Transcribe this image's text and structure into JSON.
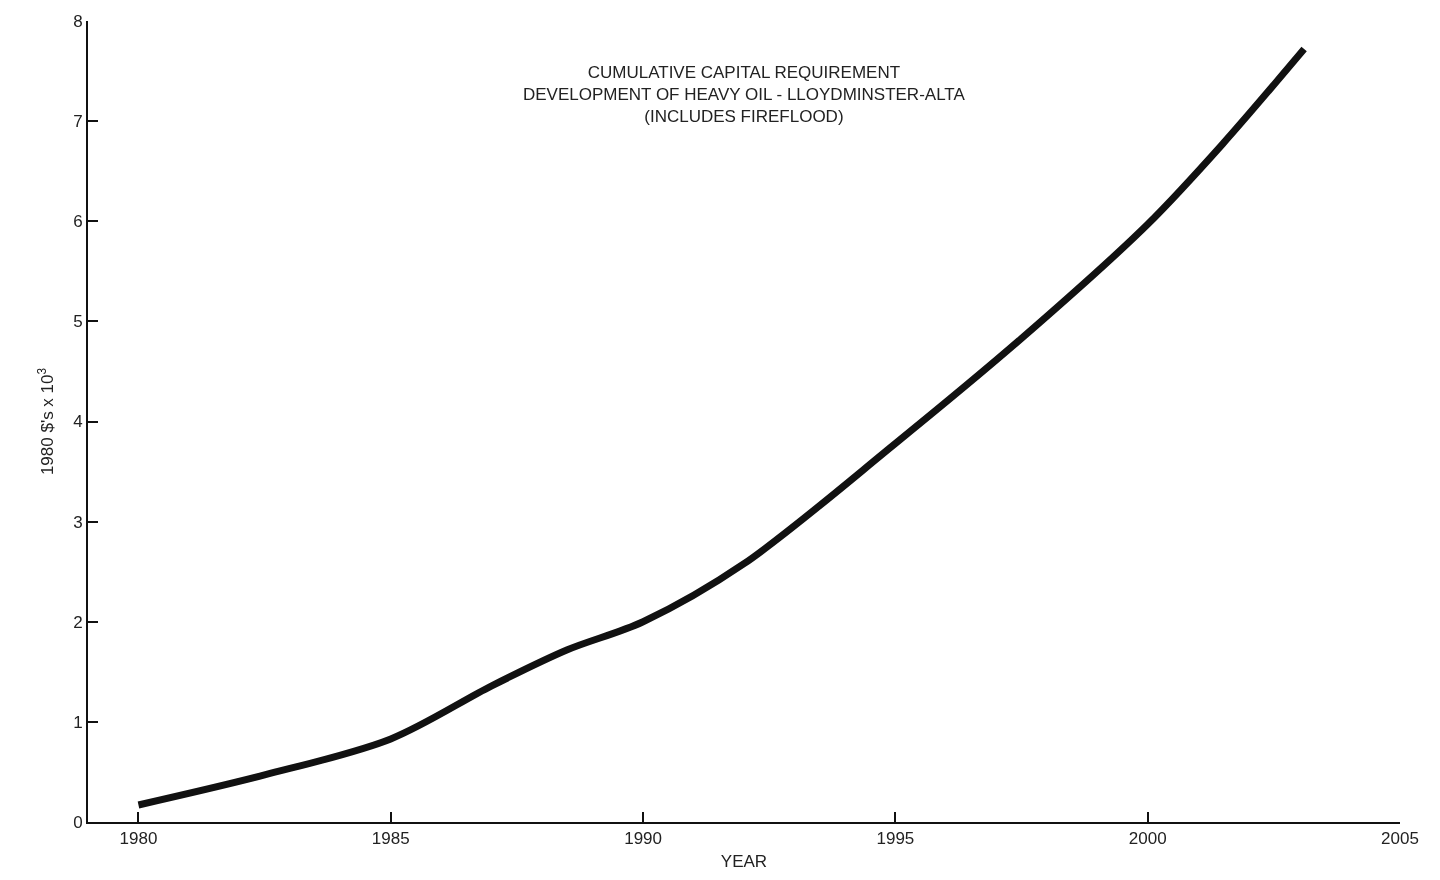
{
  "chart_data": {
    "type": "line",
    "title": "CUMULATIVE CAPITAL REQUIREMENT\nDEVELOPMENT OF HEAVY OIL - LLOYDMINSTER-ALTA\n(INCLUDES FIREFLOOD)",
    "xlabel": "YEAR",
    "ylabel": "1980 $'s x 10$^{3}$",
    "x": [
      1980,
      1982.5,
      1985,
      1987,
      1988.5,
      1990,
      1992,
      1995,
      1997.5,
      2000,
      2001.5,
      2003.1
    ],
    "series": [
      {
        "color": "#111111",
        "values": [
          0.17,
          0.47,
          0.83,
          1.36,
          1.72,
          2.0,
          2.58,
          3.78,
          4.83,
          5.97,
          6.78,
          7.72
        ]
      }
    ],
    "xlim": [
      1979,
      2005
    ],
    "xticks": [
      1980,
      1985,
      1990,
      1995,
      2000,
      2005
    ],
    "ylim": [
      0,
      8
    ],
    "yticks": [
      0,
      1,
      2,
      3,
      4,
      5,
      6,
      7,
      8
    ],
    "marker": "none",
    "line_style": "solid"
  }
}
